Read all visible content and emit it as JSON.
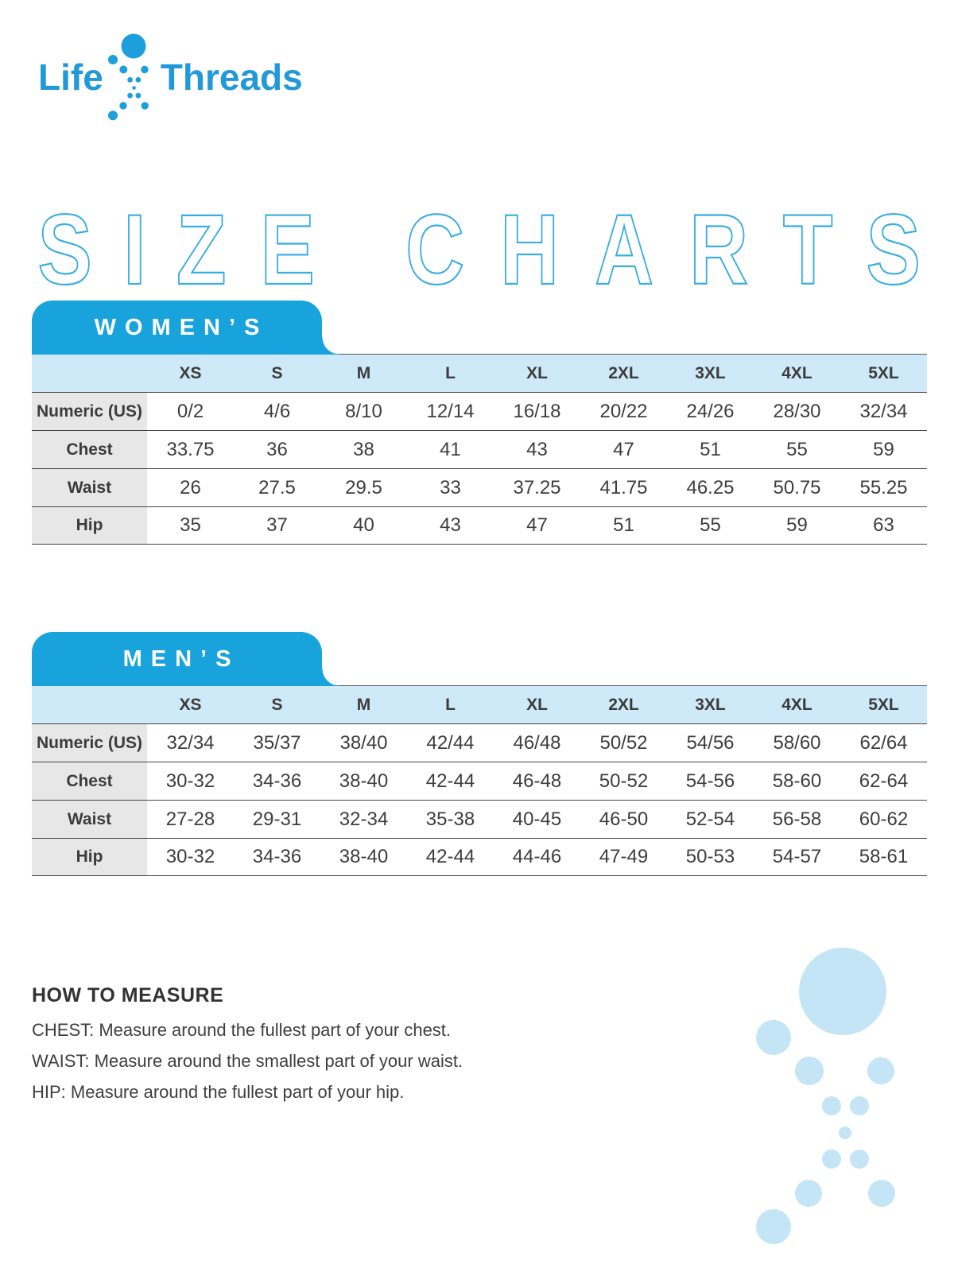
{
  "brand": {
    "left": "Life",
    "right": "Threads"
  },
  "title": "SIZE CHARTS",
  "colors": {
    "brand_blue": "#18a3dc",
    "logo_blue": "#2199d8",
    "outline_blue": "#38ade2",
    "header_light_blue": "#cee9f7",
    "label_gray": "#e7e7e8",
    "decorative_pale_blue": "#c3e5f6",
    "text_dark": "#3c3c3c"
  },
  "tables": [
    {
      "tab_label": "WOMEN’S",
      "size_headers": [
        "XS",
        "S",
        "M",
        "L",
        "XL",
        "2XL",
        "3XL",
        "4XL",
        "5XL"
      ],
      "rows": [
        {
          "label": "Numeric (US)",
          "values": [
            "0/2",
            "4/6",
            "8/10",
            "12/14",
            "16/18",
            "20/22",
            "24/26",
            "28/30",
            "32/34"
          ]
        },
        {
          "label": "Chest",
          "values": [
            "33.75",
            "36",
            "38",
            "41",
            "43",
            "47",
            "51",
            "55",
            "59"
          ]
        },
        {
          "label": "Waist",
          "values": [
            "26",
            "27.5",
            "29.5",
            "33",
            "37.25",
            "41.75",
            "46.25",
            "50.75",
            "55.25"
          ]
        },
        {
          "label": "Hip",
          "values": [
            "35",
            "37",
            "40",
            "43",
            "47",
            "51",
            "55",
            "59",
            "63"
          ]
        }
      ]
    },
    {
      "tab_label": "MEN’S",
      "size_headers": [
        "XS",
        "S",
        "M",
        "L",
        "XL",
        "2XL",
        "3XL",
        "4XL",
        "5XL"
      ],
      "rows": [
        {
          "label": "Numeric (US)",
          "values": [
            "32/34",
            "35/37",
            "38/40",
            "42/44",
            "46/48",
            "50/52",
            "54/56",
            "58/60",
            "62/64"
          ]
        },
        {
          "label": "Chest",
          "values": [
            "30-32",
            "34-36",
            "38-40",
            "42-44",
            "46-48",
            "50-52",
            "54-56",
            "58-60",
            "62-64"
          ]
        },
        {
          "label": "Waist",
          "values": [
            "27-28",
            "29-31",
            "32-34",
            "35-38",
            "40-45",
            "46-50",
            "52-54",
            "56-58",
            "60-62"
          ]
        },
        {
          "label": "Hip",
          "values": [
            "30-32",
            "34-36",
            "38-40",
            "42-44",
            "44-46",
            "47-49",
            "50-53",
            "54-57",
            "58-61"
          ]
        }
      ]
    }
  ],
  "how_to_measure": {
    "heading": "HOW TO MEASURE",
    "lines": [
      "CHEST: Measure around the fullest part of your chest.",
      "WAIST: Measure around the smallest part of your waist.",
      "HIP: Measure around the fullest part of your hip."
    ]
  }
}
